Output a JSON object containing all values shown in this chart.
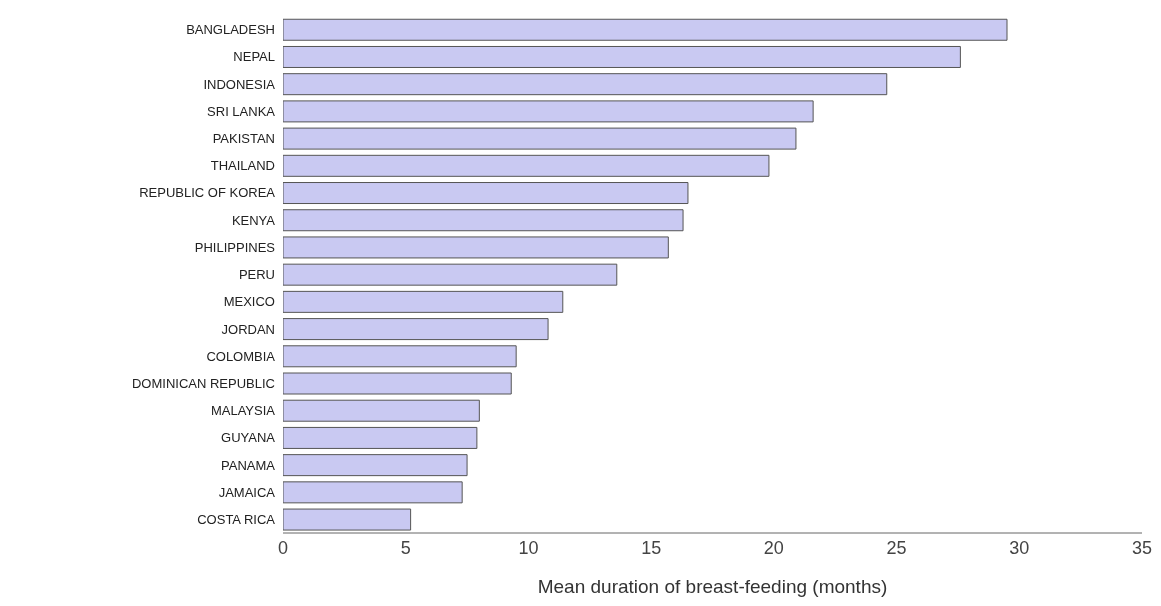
{
  "chart_data": {
    "type": "bar",
    "orientation": "horizontal",
    "xlabel": "Mean duration of breast-feeding (months)",
    "categories": [
      "BANGLADESH",
      "NEPAL",
      "INDONESIA",
      "SRI LANKA",
      "PAKISTAN",
      "THAILAND",
      "REPUBLIC OF KOREA",
      "KENYA",
      "PHILIPPINES",
      "PERU",
      "MEXICO",
      "JORDAN",
      "COLOMBIA",
      "DOMINICAN REPUBLIC",
      "MALAYSIA",
      "GUYANA",
      "PANAMA",
      "JAMAICA",
      "COSTA RICA"
    ],
    "values": [
      29.5,
      27.6,
      24.6,
      21.6,
      20.9,
      19.8,
      16.5,
      16.3,
      15.7,
      13.6,
      11.4,
      10.8,
      9.5,
      9.3,
      8.0,
      7.9,
      7.5,
      7.3,
      5.2
    ],
    "color": "#c9c9f2",
    "xlim": [
      0,
      35
    ],
    "xticks": [
      0,
      5,
      10,
      15,
      20,
      25,
      30,
      35
    ],
    "grid": false,
    "legend": false
  }
}
